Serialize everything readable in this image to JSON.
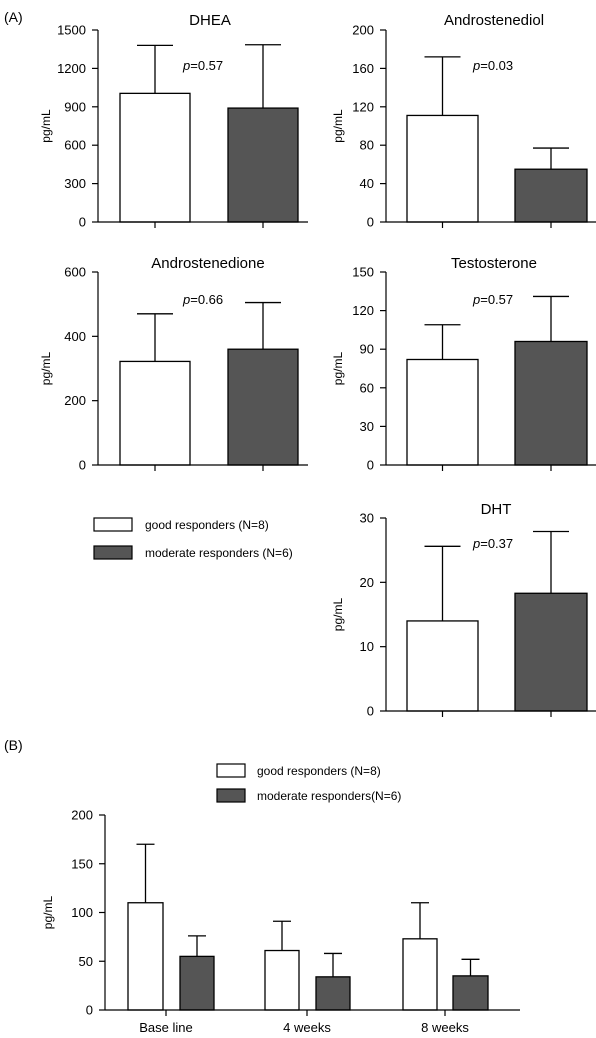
{
  "figure": {
    "panel_a_label": "(A)",
    "panel_b_label": "(B)",
    "colors": {
      "good": "#ffffff",
      "moderate": "#555555",
      "stroke": "#000000"
    }
  },
  "legend_a": {
    "good": "good responders (N=8)",
    "moderate": "moderate responders (N=6)"
  },
  "legend_b": {
    "good": "good responders (N=8)",
    "moderate": "moderate responders(N=6)"
  },
  "chart_data": [
    {
      "type": "bar",
      "title": "DHEA",
      "ylabel": "pg/mL",
      "ylim": [
        0,
        1500
      ],
      "yticks": [
        "0",
        "300",
        "600",
        "900",
        "1200",
        "1500"
      ],
      "p_value": "0.57",
      "series": [
        {
          "name": "good responders (N=8)",
          "values": [
            1005
          ],
          "errors": [
            375
          ]
        },
        {
          "name": "moderate responders (N=6)",
          "values": [
            890
          ],
          "errors": [
            495
          ]
        }
      ]
    },
    {
      "type": "bar",
      "title": "Androstenediol",
      "ylabel": "pg/mL",
      "ylim": [
        0,
        200
      ],
      "yticks": [
        "0",
        "40",
        "80",
        "120",
        "160",
        "200"
      ],
      "p_value": "0.03",
      "series": [
        {
          "name": "good responders (N=8)",
          "values": [
            111
          ],
          "errors": [
            61
          ]
        },
        {
          "name": "moderate responders (N=6)",
          "values": [
            55
          ],
          "errors": [
            22
          ]
        }
      ]
    },
    {
      "type": "bar",
      "title": "Androstenedione",
      "ylabel": "pg/mL",
      "ylim": [
        0,
        600
      ],
      "yticks": [
        "0",
        "200",
        "400",
        "600"
      ],
      "p_value": "0.66",
      "series": [
        {
          "name": "good responders (N=8)",
          "values": [
            322
          ],
          "errors": [
            148
          ]
        },
        {
          "name": "moderate responders (N=6)",
          "values": [
            360
          ],
          "errors": [
            145
          ]
        }
      ]
    },
    {
      "type": "bar",
      "title": "Testosterone",
      "ylabel": "pg/mL",
      "ylim": [
        0,
        150
      ],
      "yticks": [
        "0",
        "30",
        "60",
        "90",
        "120",
        "150"
      ],
      "p_value": "0.57",
      "series": [
        {
          "name": "good responders (N=8)",
          "values": [
            82
          ],
          "errors": [
            27
          ]
        },
        {
          "name": "moderate responders (N=6)",
          "values": [
            96
          ],
          "errors": [
            35
          ]
        }
      ]
    },
    {
      "type": "bar",
      "title": "DHT",
      "ylabel": "pg/mL",
      "ylim": [
        0,
        30
      ],
      "yticks": [
        "0",
        "10",
        "20",
        "30"
      ],
      "p_value": "0.37",
      "series": [
        {
          "name": "good responders (N=8)",
          "values": [
            14
          ],
          "errors": [
            11.6
          ]
        },
        {
          "name": "moderate responders (N=6)",
          "values": [
            18.3
          ],
          "errors": [
            9.6
          ]
        }
      ]
    },
    {
      "type": "bar",
      "title": "",
      "ylabel": "pg/mL",
      "ylim": [
        0,
        200
      ],
      "yticks": [
        "0",
        "50",
        "100",
        "150",
        "200"
      ],
      "categories": [
        "Base line",
        "4 weeks",
        "8 weeks"
      ],
      "series": [
        {
          "name": "good responders (N=8)",
          "values": [
            110,
            61,
            73
          ],
          "errors": [
            60,
            30,
            37
          ]
        },
        {
          "name": "moderate responders(N=6)",
          "values": [
            55,
            34,
            35
          ],
          "errors": [
            21,
            24,
            17
          ]
        }
      ]
    }
  ]
}
